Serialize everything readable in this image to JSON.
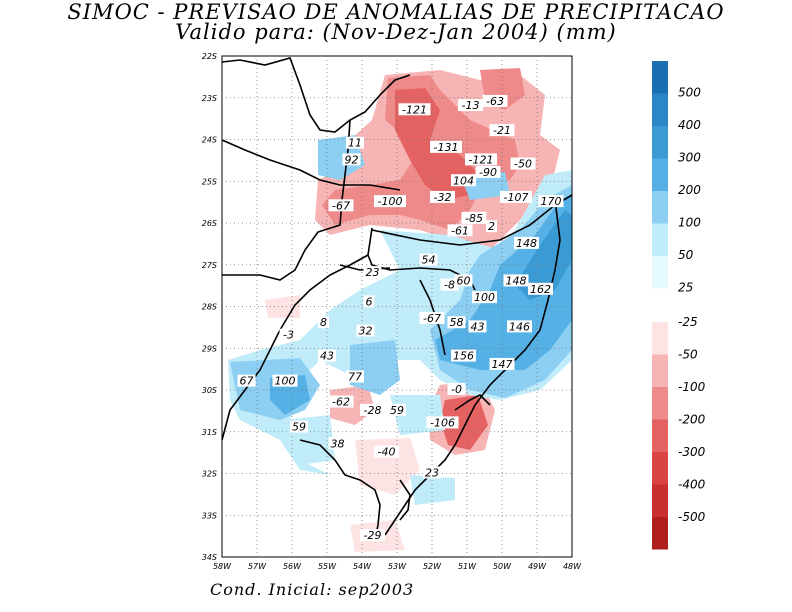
{
  "title": "SIMOC - PREVISAO DE ANOMALIAS DE PRECIPITACAO",
  "subtitle": "Valido para: (Nov-Dez-Jan 2004) (mm)",
  "footer": "Cond. Inicial: sep2003",
  "axes": {
    "lat_labels": [
      "22S",
      "23S",
      "24S",
      "25S",
      "26S",
      "27S",
      "28S",
      "29S",
      "30S",
      "31S",
      "32S",
      "33S",
      "34S"
    ],
    "lon_labels": [
      "58W",
      "57W",
      "56W",
      "55W",
      "54W",
      "53W",
      "52W",
      "51W",
      "50W",
      "49W",
      "48W"
    ]
  },
  "legend": {
    "positive": [
      {
        "label": "500",
        "color": "#1a6fb0"
      },
      {
        "label": "400",
        "color": "#2a86c4"
      },
      {
        "label": "300",
        "color": "#3a9ad4"
      },
      {
        "label": "200",
        "color": "#55b0e6"
      },
      {
        "label": "100",
        "color": "#8ccff3"
      },
      {
        "label": "50",
        "color": "#c0ecfa"
      },
      {
        "label": "25",
        "color": "#e6fbff"
      }
    ],
    "negative": [
      {
        "label": "-25",
        "color": "#fde3e3"
      },
      {
        "label": "-50",
        "color": "#f7b4b4"
      },
      {
        "label": "-100",
        "color": "#ef8a8a"
      },
      {
        "label": "-200",
        "color": "#e56262"
      },
      {
        "label": "-300",
        "color": "#d94545"
      },
      {
        "label": "-400",
        "color": "#c83030"
      },
      {
        "label": "-500",
        "color": "#b01e1e"
      }
    ]
  },
  "map_labels": [
    {
      "text": "-121",
      "lon": -52.5,
      "lat": -23.3
    },
    {
      "text": "-13",
      "lon": -50.9,
      "lat": -23.2
    },
    {
      "text": "-63",
      "lon": -50.2,
      "lat": -23.1
    },
    {
      "text": "-21",
      "lon": -50.0,
      "lat": -23.8
    },
    {
      "text": "11",
      "lon": -54.2,
      "lat": -24.1
    },
    {
      "text": "92",
      "lon": -54.3,
      "lat": -24.5
    },
    {
      "text": "-131",
      "lon": -51.6,
      "lat": -24.2
    },
    {
      "text": "-121",
      "lon": -50.6,
      "lat": -24.5
    },
    {
      "text": "-50",
      "lon": -49.4,
      "lat": -24.6
    },
    {
      "text": "104",
      "lon": -51.1,
      "lat": -25.0
    },
    {
      "text": "-90",
      "lon": -50.4,
      "lat": -24.8
    },
    {
      "text": "-67",
      "lon": -54.6,
      "lat": -25.6
    },
    {
      "text": "-100",
      "lon": -53.2,
      "lat": -25.5
    },
    {
      "text": "-32",
      "lon": -51.7,
      "lat": -25.4
    },
    {
      "text": "-107",
      "lon": -49.6,
      "lat": -25.4
    },
    {
      "text": "170",
      "lon": -48.6,
      "lat": -25.5
    },
    {
      "text": "-85",
      "lon": -50.8,
      "lat": -25.9
    },
    {
      "text": "-61",
      "lon": -51.2,
      "lat": -26.2
    },
    {
      "text": "2",
      "lon": -50.3,
      "lat": -26.1
    },
    {
      "text": "148",
      "lon": -49.3,
      "lat": -26.5
    },
    {
      "text": "54",
      "lon": -52.1,
      "lat": -26.9
    },
    {
      "text": "23",
      "lon": -53.7,
      "lat": -27.2
    },
    {
      "text": "-8",
      "lon": -51.5,
      "lat": -27.5
    },
    {
      "text": "60",
      "lon": -51.1,
      "lat": -27.4
    },
    {
      "text": "148",
      "lon": -49.6,
      "lat": -27.4
    },
    {
      "text": "162",
      "lon": -48.9,
      "lat": -27.6
    },
    {
      "text": "100",
      "lon": -50.5,
      "lat": -27.8
    },
    {
      "text": "6",
      "lon": -53.8,
      "lat": -27.9
    },
    {
      "text": "-67",
      "lon": -52.0,
      "lat": -28.3
    },
    {
      "text": "58",
      "lon": -51.3,
      "lat": -28.4
    },
    {
      "text": "43",
      "lon": -50.7,
      "lat": -28.5
    },
    {
      "text": "146",
      "lon": -49.5,
      "lat": -28.5
    },
    {
      "text": "8",
      "lon": -55.1,
      "lat": -28.4
    },
    {
      "text": "32",
      "lon": -53.9,
      "lat": -28.6
    },
    {
      "text": "-3",
      "lon": -56.1,
      "lat": -28.7
    },
    {
      "text": "156",
      "lon": -51.1,
      "lat": -29.2
    },
    {
      "text": "43",
      "lon": -55.0,
      "lat": -29.2
    },
    {
      "text": "147",
      "lon": -50.0,
      "lat": -29.4
    },
    {
      "text": "77",
      "lon": -54.2,
      "lat": -29.7
    },
    {
      "text": "67",
      "lon": -57.3,
      "lat": -29.8
    },
    {
      "text": "100",
      "lon": -56.2,
      "lat": -29.8
    },
    {
      "text": "-0",
      "lon": -51.3,
      "lat": -30.0
    },
    {
      "text": "-62",
      "lon": -54.6,
      "lat": -30.3
    },
    {
      "text": "-28",
      "lon": -53.7,
      "lat": -30.5
    },
    {
      "text": "59",
      "lon": -53.0,
      "lat": -30.5
    },
    {
      "text": "-106",
      "lon": -51.7,
      "lat": -30.8
    },
    {
      "text": "59",
      "lon": -55.8,
      "lat": -30.9
    },
    {
      "text": "38",
      "lon": -54.7,
      "lat": -31.3
    },
    {
      "text": "-40",
      "lon": -53.3,
      "lat": -31.5
    },
    {
      "text": "23",
      "lon": -52.0,
      "lat": -32.0
    },
    {
      "text": "-29",
      "lon": -53.7,
      "lat": -33.5
    }
  ]
}
